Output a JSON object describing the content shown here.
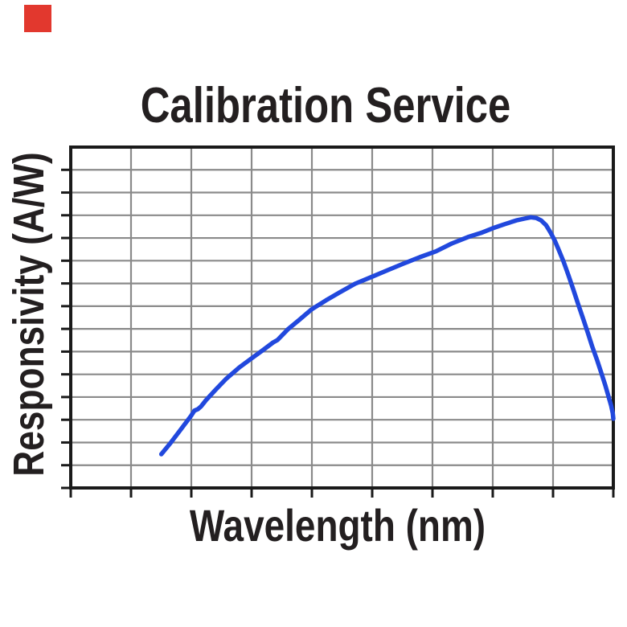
{
  "page": {
    "background": "#ffffff"
  },
  "marker": {
    "color": "#e2382e"
  },
  "chart_data": {
    "type": "line",
    "title": "Calibration Service",
    "xlabel": "Wavelength (nm)",
    "ylabel": "Responsivity (A/W)",
    "x_tick_labels": [],
    "y_tick_labels": [],
    "grid": {
      "visible": true,
      "x_divisions": 9,
      "y_divisions": 15,
      "color": "#8a8a8a"
    },
    "axes": {
      "frame_color": "#1a1a1a",
      "tick_color": "#1a1a1a",
      "x_ticks": 10,
      "y_ticks": 15
    },
    "text_color": "#231f20",
    "legend": {
      "visible": false
    },
    "series": [
      {
        "name": "responsivity-curve",
        "color": "#2148dd",
        "points_fraction": [
          [
            0.167,
            0.099
          ],
          [
            0.184,
            0.132
          ],
          [
            0.203,
            0.172
          ],
          [
            0.222,
            0.212
          ],
          [
            0.228,
            0.227
          ],
          [
            0.234,
            0.231
          ],
          [
            0.24,
            0.239
          ],
          [
            0.249,
            0.257
          ],
          [
            0.267,
            0.288
          ],
          [
            0.287,
            0.321
          ],
          [
            0.311,
            0.354
          ],
          [
            0.333,
            0.38
          ],
          [
            0.353,
            0.403
          ],
          [
            0.373,
            0.427
          ],
          [
            0.381,
            0.434
          ],
          [
            0.4,
            0.465
          ],
          [
            0.421,
            0.493
          ],
          [
            0.444,
            0.524
          ],
          [
            0.47,
            0.55
          ],
          [
            0.495,
            0.573
          ],
          [
            0.524,
            0.599
          ],
          [
            0.556,
            0.62
          ],
          [
            0.584,
            0.639
          ],
          [
            0.613,
            0.658
          ],
          [
            0.643,
            0.677
          ],
          [
            0.673,
            0.694
          ],
          [
            0.702,
            0.717
          ],
          [
            0.732,
            0.736
          ],
          [
            0.756,
            0.748
          ],
          [
            0.778,
            0.762
          ],
          [
            0.8,
            0.774
          ],
          [
            0.821,
            0.785
          ],
          [
            0.836,
            0.79
          ],
          [
            0.848,
            0.794
          ],
          [
            0.858,
            0.792
          ],
          [
            0.867,
            0.785
          ],
          [
            0.876,
            0.771
          ],
          [
            0.884,
            0.75
          ],
          [
            0.892,
            0.726
          ],
          [
            0.899,
            0.7
          ],
          [
            0.908,
            0.665
          ],
          [
            0.917,
            0.625
          ],
          [
            0.926,
            0.583
          ],
          [
            0.935,
            0.54
          ],
          [
            0.944,
            0.498
          ],
          [
            0.953,
            0.455
          ],
          [
            0.961,
            0.415
          ],
          [
            0.97,
            0.375
          ],
          [
            0.978,
            0.337
          ],
          [
            0.985,
            0.302
          ],
          [
            0.991,
            0.269
          ],
          [
            0.996,
            0.241
          ],
          [
            0.999,
            0.219
          ],
          [
            1.0,
            0.203
          ]
        ]
      }
    ]
  }
}
